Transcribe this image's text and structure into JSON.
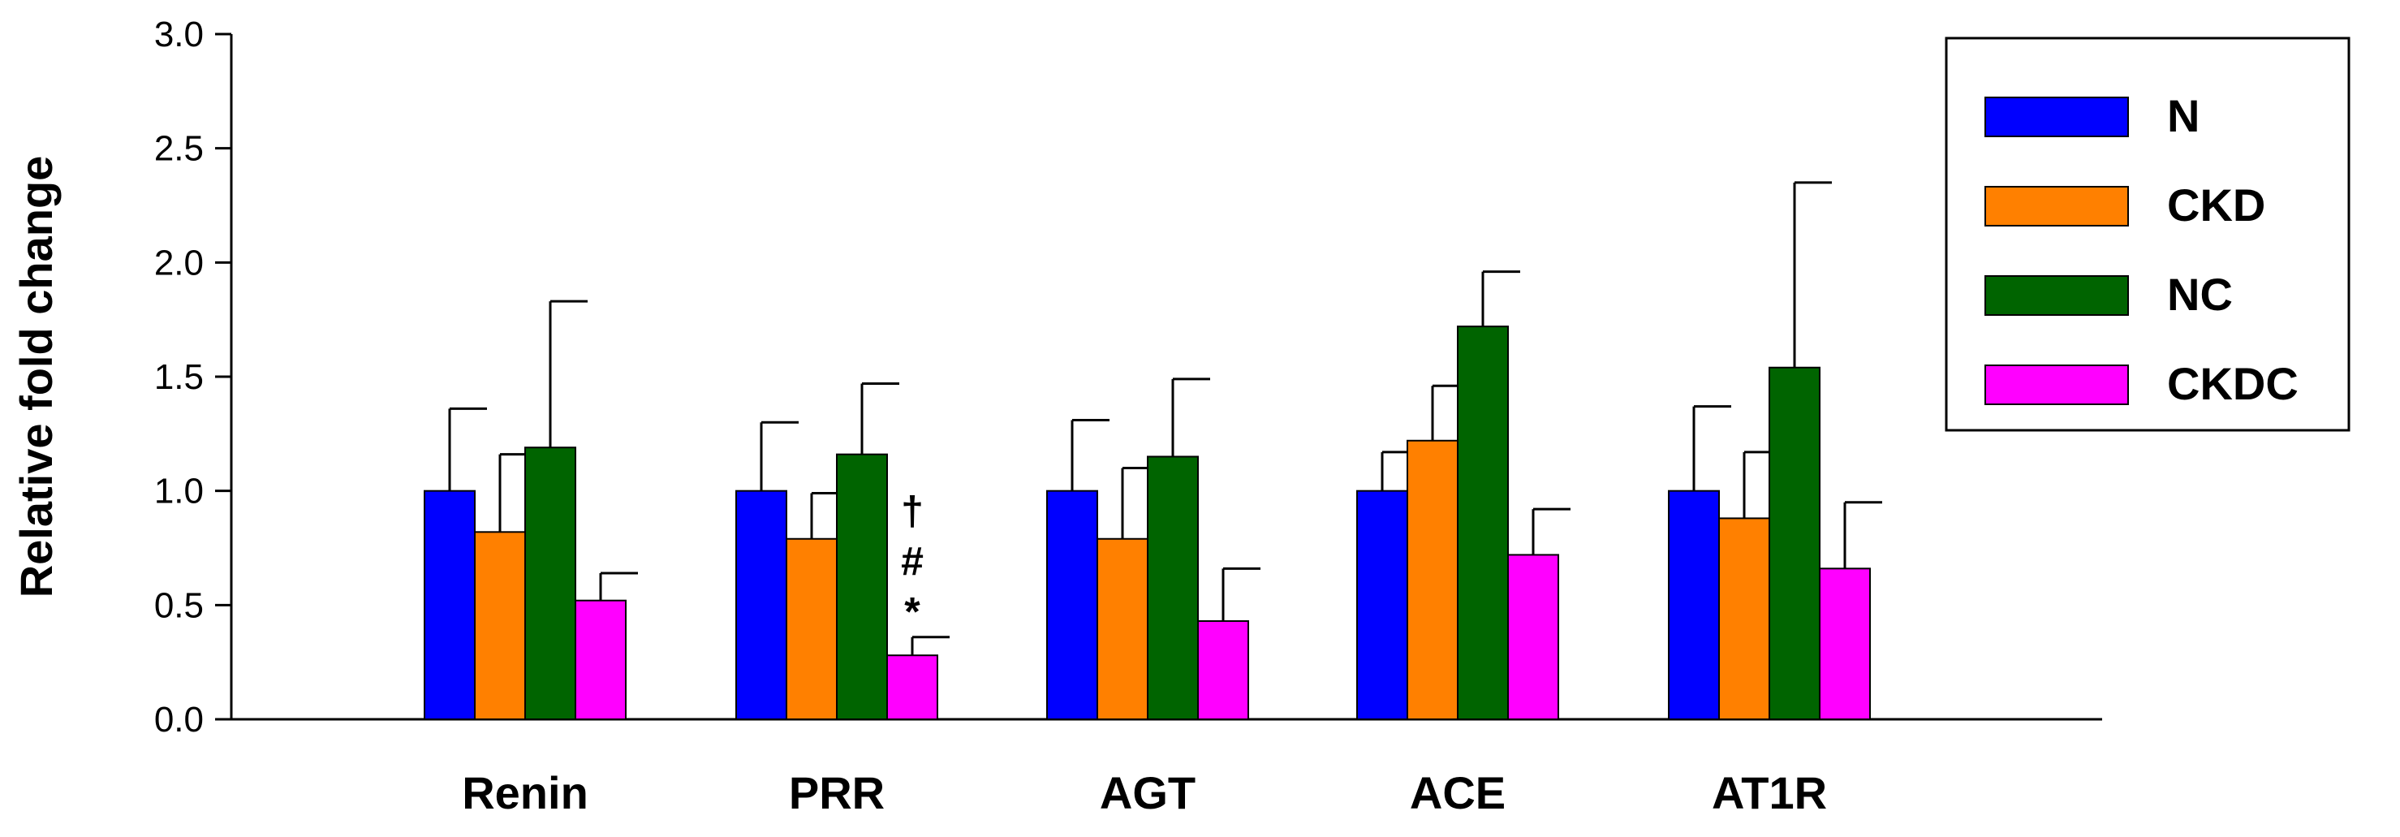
{
  "chart_data": {
    "type": "bar",
    "title": "",
    "xlabel": "",
    "ylabel": "Relative fold change",
    "ylim": [
      0,
      3.0
    ],
    "yticks": [
      0.0,
      0.5,
      1.0,
      1.5,
      2.0,
      2.5,
      3.0
    ],
    "ytick_labels": [
      "0.0",
      "0.5",
      "1.0",
      "1.5",
      "2.0",
      "2.5",
      "3.0"
    ],
    "grid": false,
    "legend_position": "top-right",
    "categories": [
      "Renin",
      "PRR",
      "AGT",
      "ACE",
      "AT1R"
    ],
    "series": [
      {
        "name": "N",
        "color": "#0000ff",
        "values": [
          1.0,
          1.0,
          1.0,
          1.0,
          1.0
        ],
        "errors": [
          0.36,
          0.3,
          0.31,
          0.17,
          0.37
        ]
      },
      {
        "name": "CKD",
        "color": "#ff8000",
        "values": [
          0.82,
          0.79,
          0.79,
          1.22,
          0.88
        ],
        "errors": [
          0.34,
          0.2,
          0.31,
          0.24,
          0.29
        ]
      },
      {
        "name": "NC",
        "color": "#006400",
        "values": [
          1.19,
          1.16,
          1.15,
          1.72,
          1.54
        ],
        "errors": [
          0.64,
          0.31,
          0.34,
          0.24,
          0.81
        ]
      },
      {
        "name": "CKDC",
        "color": "#ff00ff",
        "values": [
          0.52,
          0.28,
          0.43,
          0.72,
          0.66
        ],
        "errors": [
          0.12,
          0.08,
          0.23,
          0.2,
          0.29
        ]
      }
    ],
    "annotations": [
      {
        "category": "PRR",
        "series": "CKDC",
        "symbols": [
          "†",
          "#",
          "*"
        ]
      }
    ]
  }
}
